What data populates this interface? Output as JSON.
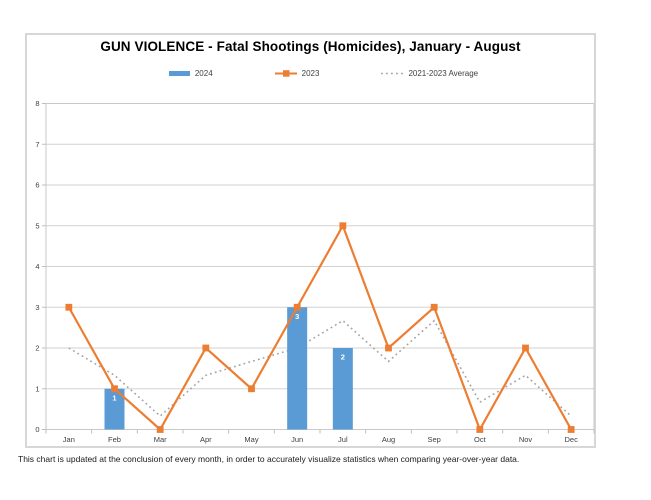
{
  "page": {
    "caption": "This chart is updated at the conclusion of every month, in order to accurately visualize statistics when comparing year-over-year data."
  },
  "chart_data": {
    "type": "bar",
    "subtype": "combo-bar-line",
    "title": "GUN VIOLENCE - Fatal Shootings (Homicides), January - August",
    "categories": [
      "Jan",
      "Feb",
      "Mar",
      "Apr",
      "May",
      "Jun",
      "Jul",
      "Aug",
      "Sep",
      "Oct",
      "Nov",
      "Dec"
    ],
    "series": [
      {
        "name": "2024",
        "type": "bar",
        "color": "#5B9BD5",
        "values": [
          null,
          1,
          null,
          null,
          null,
          3,
          2,
          null,
          null,
          null,
          null,
          null
        ],
        "data_labels": true,
        "label_color": "#ffffff"
      },
      {
        "name": "2023",
        "type": "line",
        "color": "#ED7D31",
        "marker": "square",
        "values": [
          3,
          1,
          0,
          2,
          1,
          3,
          5,
          2,
          3,
          0,
          2,
          0
        ]
      },
      {
        "name": "2021-2023 Average",
        "type": "line",
        "style": "dotted",
        "color": "#A5A5A5",
        "values": [
          2,
          1.33,
          0.33,
          1.33,
          1.67,
          2,
          2.67,
          1.67,
          2.67,
          0.67,
          1.33,
          0.33
        ]
      }
    ],
    "xlabel": "",
    "ylabel": "",
    "ylim": [
      0,
      8
    ],
    "ytick_step": 1,
    "grid": true,
    "legend_position": "top",
    "colors": {
      "gridline": "#d2d2d2",
      "axis": "#bfbfbf",
      "tick_label": "#404040",
      "plot_border": "#c9c9c9"
    }
  }
}
